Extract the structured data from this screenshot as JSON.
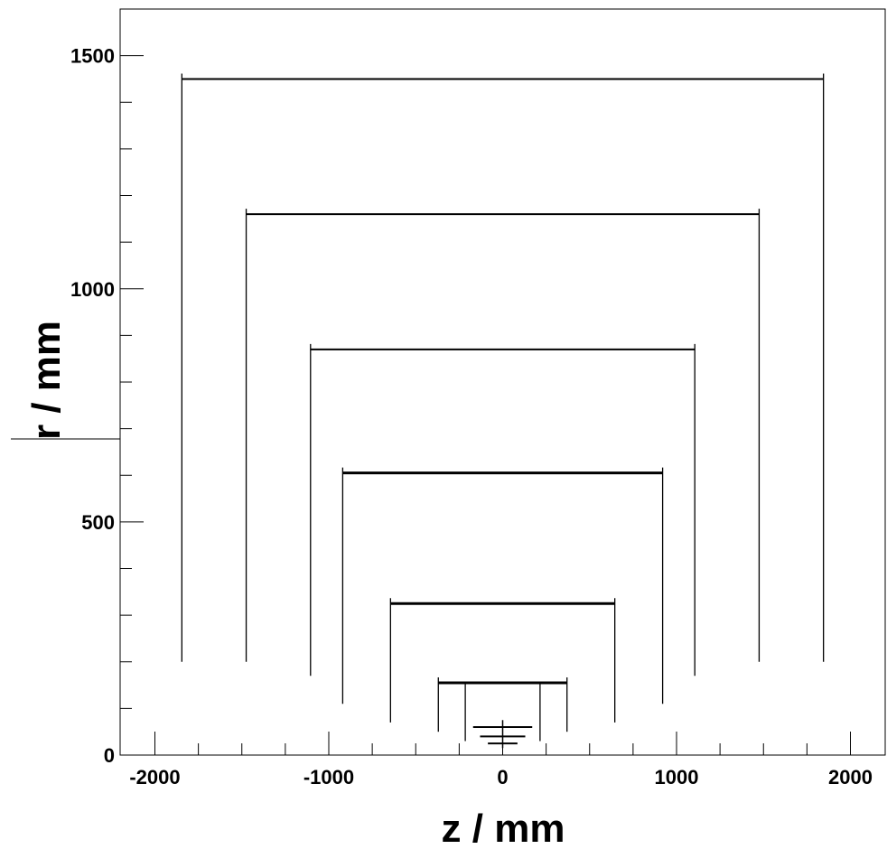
{
  "chart_data": {
    "type": "scatter",
    "title": "",
    "xlabel": "z / mm",
    "ylabel": "r / mm",
    "xlim": [
      -2200,
      2200
    ],
    "ylim": [
      0,
      1600
    ],
    "grid": false,
    "x_major_ticks": [
      -2000,
      -1000,
      0,
      1000,
      2000
    ],
    "x_tick_labels": [
      "-2000",
      "-1000",
      "0",
      "1000",
      "2000"
    ],
    "y_major_ticks": [
      0,
      500,
      1000,
      1500
    ],
    "y_tick_labels": [
      "0",
      "500",
      "1000",
      "1500"
    ],
    "marker_color": "#000000",
    "layers": [
      {
        "r": 1450,
        "z_half": 1845,
        "r_inner": 200
      },
      {
        "r": 1160,
        "z_half": 1475,
        "r_inner": 200
      },
      {
        "r": 870,
        "z_half": 1105,
        "r_inner": 170
      },
      {
        "r": 605,
        "z_half": 920,
        "r_inner": 110
      },
      {
        "r": 325,
        "z_half": 645,
        "r_inner": 70
      },
      {
        "r": 155,
        "z_half": 370,
        "r_inner": 50
      }
    ],
    "inner_layer_extra_edges": [
      {
        "z": 215,
        "r_low": 30,
        "r_high": 155
      }
    ],
    "beampipe_rings": [
      {
        "r": 60,
        "z_half": 170
      },
      {
        "r": 40,
        "z_half": 130
      },
      {
        "r": 25,
        "z_half": 85
      }
    ]
  }
}
